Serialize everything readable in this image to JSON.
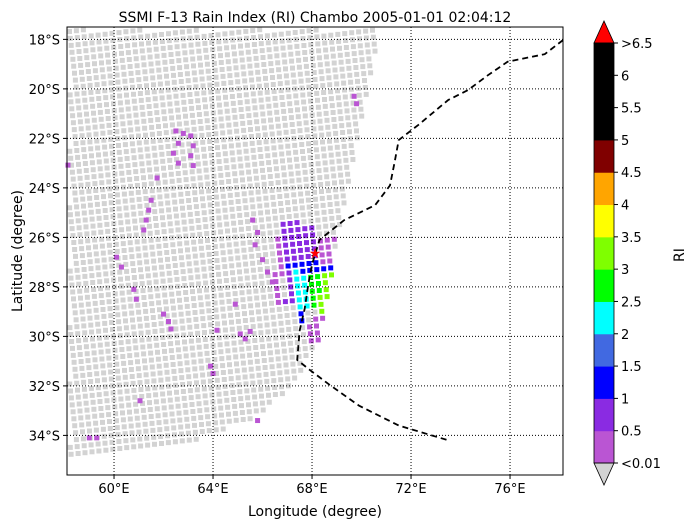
{
  "chart_data": {
    "type": "heatmap",
    "title": "SSMI F-13 Rain Index (RI) Chambo 2005-01-01 02:04:12",
    "xlabel": "Longitude (degree)",
    "ylabel": "Latitude (degree)",
    "xlim": [
      58.1,
      78.14
    ],
    "ylim": [
      -35.6,
      -17.5
    ],
    "grid": true,
    "xticks": [
      {
        "v": 60,
        "label": "60°E"
      },
      {
        "v": 64,
        "label": "64°E"
      },
      {
        "v": 68,
        "label": "68°E"
      },
      {
        "v": 72,
        "label": "72°E"
      },
      {
        "v": 76,
        "label": "76°E"
      }
    ],
    "yticks": [
      {
        "v": -18,
        "label": "18°S"
      },
      {
        "v": -20,
        "label": "20°S"
      },
      {
        "v": -22,
        "label": "22°S"
      },
      {
        "v": -24,
        "label": "24°S"
      },
      {
        "v": -26,
        "label": "26°S"
      },
      {
        "v": -28,
        "label": "28°S"
      },
      {
        "v": -30,
        "label": "30°S"
      },
      {
        "v": -32,
        "label": "32°S"
      },
      {
        "v": -34,
        "label": "34°S"
      }
    ],
    "colorbar": {
      "label": "RI",
      "under_color": "#d3d3d3",
      "over_color": "#ff0000",
      "bounds": [
        0.01,
        0.5,
        1,
        1.5,
        2,
        2.5,
        3,
        3.5,
        4,
        4.5,
        5,
        5.5,
        6,
        6.5
      ],
      "colors": [
        "#ba55d3",
        "#8a2be2",
        "#0000ff",
        "#4169e1",
        "#00ffff",
        "#00ff00",
        "#7fff00",
        "#ffff00",
        "#ffa500",
        "#800000",
        "#000000",
        "#000000",
        "#000000"
      ],
      "tick_labels": [
        "<0.01",
        "0.5",
        "1",
        "1.5",
        "2",
        "2.5",
        "3",
        "3.5",
        "4",
        "4.5",
        "5",
        "5.5",
        "6",
        ">6.5"
      ]
    },
    "swath_edge": [
      [
        70.9,
        -17.5
      ],
      [
        70.75,
        -17.62
      ],
      [
        69.13,
        -25.7
      ],
      [
        68.32,
        -30.15
      ],
      [
        67.1,
        -32.17
      ],
      [
        65.5,
        -33.38
      ],
      [
        62.67,
        -34.39
      ],
      [
        58.1,
        -35.07
      ]
    ],
    "coastline": [
      [
        78.14,
        -18.03
      ],
      [
        77.4,
        -18.6
      ],
      [
        75.9,
        -18.9
      ],
      [
        75.1,
        -19.45
      ],
      [
        74.3,
        -20.05
      ],
      [
        73.5,
        -20.45
      ],
      [
        72.3,
        -21.45
      ],
      [
        71.5,
        -22.07
      ],
      [
        71.35,
        -22.9
      ],
      [
        71.15,
        -23.9
      ],
      [
        70.55,
        -24.7
      ],
      [
        69.3,
        -25.3
      ],
      [
        68.3,
        -26.1
      ],
      [
        68.0,
        -27.1
      ],
      [
        67.85,
        -27.9
      ],
      [
        67.7,
        -28.9
      ],
      [
        67.5,
        -29.75
      ],
      [
        67.4,
        -30.95
      ],
      [
        67.9,
        -31.35
      ],
      [
        68.7,
        -31.95
      ],
      [
        69.9,
        -32.8
      ],
      [
        71.5,
        -33.6
      ],
      [
        73.5,
        -34.2
      ]
    ],
    "storm_center": {
      "lon": 68.12,
      "lat": -26.63
    },
    "rain_regions": [
      {
        "lon": [
          66.8,
          68.2
        ],
        "lat": [
          -27.0,
          -25.4
        ],
        "ri": 0.8
      },
      {
        "lon": [
          68.2,
          68.9
        ],
        "lat": [
          -27.0,
          -26.0
        ],
        "ri": 0.3
      },
      {
        "lon": [
          66.8,
          68.9
        ],
        "lat": [
          -27.4,
          -27.0
        ],
        "ri": 1.2
      },
      {
        "lon": [
          66.9,
          67.3
        ],
        "lat": [
          -28.7,
          -27.4
        ],
        "ri": 0.8
      },
      {
        "lon": [
          67.3,
          67.8
        ],
        "lat": [
          -28.9,
          -27.4
        ],
        "ri": 2.2
      },
      {
        "lon": [
          67.8,
          68.3
        ],
        "lat": [
          -29.0,
          -27.4
        ],
        "ri": 2.7
      },
      {
        "lon": [
          68.3,
          68.9
        ],
        "lat": [
          -29.2,
          -27.3
        ],
        "ri": 3.2
      },
      {
        "lon": [
          68.6,
          68.85
        ],
        "lat": [
          -28.2,
          -27.8
        ],
        "ri": 3.8
      },
      {
        "lon": [
          67.3,
          67.8
        ],
        "lat": [
          -29.4,
          -28.9
        ],
        "ri": 1.2
      },
      {
        "lon": [
          67.9,
          68.5
        ],
        "lat": [
          -30.3,
          -29.2
        ],
        "ri": 0.3
      },
      {
        "lon": [
          66.5,
          66.8
        ],
        "lat": [
          -28.7,
          -26.0
        ],
        "ri": 0.3
      }
    ],
    "rain_pixels": [
      [
        58.14,
        -23.08,
        0.3
      ],
      [
        62.5,
        -21.7,
        0.3
      ],
      [
        62.8,
        -21.8,
        0.3
      ],
      [
        63.1,
        -21.9,
        0.3
      ],
      [
        62.6,
        -22.2,
        0.3
      ],
      [
        63.2,
        -22.3,
        0.3
      ],
      [
        62.4,
        -22.6,
        0.3
      ],
      [
        63.1,
        -22.7,
        0.3
      ],
      [
        62.6,
        -23.0,
        0.3
      ],
      [
        63.2,
        -23.1,
        0.3
      ],
      [
        61.74,
        -23.6,
        0.3
      ],
      [
        61.5,
        -24.5,
        0.3
      ],
      [
        61.4,
        -24.9,
        0.3
      ],
      [
        61.3,
        -25.3,
        0.3
      ],
      [
        61.2,
        -25.7,
        0.3
      ],
      [
        60.1,
        -26.8,
        0.3
      ],
      [
        60.3,
        -27.2,
        0.3
      ],
      [
        60.8,
        -28.1,
        0.3
      ],
      [
        60.9,
        -28.5,
        0.3
      ],
      [
        62.0,
        -29.1,
        0.3
      ],
      [
        62.2,
        -29.4,
        0.3
      ],
      [
        62.3,
        -29.7,
        0.3
      ],
      [
        64.16,
        -29.75,
        0.3
      ],
      [
        65.1,
        -29.9,
        0.3
      ],
      [
        65.3,
        -30.1,
        0.3
      ],
      [
        65.5,
        -29.8,
        0.3
      ],
      [
        64.9,
        -28.7,
        0.3
      ],
      [
        63.9,
        -31.2,
        0.3
      ],
      [
        64.0,
        -31.5,
        0.3
      ],
      [
        65.8,
        -33.4,
        0.3
      ],
      [
        61.05,
        -32.6,
        0.3
      ],
      [
        59.0,
        -34.1,
        0.3
      ],
      [
        59.3,
        -34.1,
        0.3
      ],
      [
        69.7,
        -20.3,
        0.3
      ],
      [
        69.8,
        -20.6,
        0.3
      ],
      [
        65.6,
        -25.3,
        0.3
      ],
      [
        65.8,
        -25.8,
        0.3
      ],
      [
        65.7,
        -26.3,
        0.3
      ],
      [
        66.0,
        -26.9,
        0.3
      ],
      [
        66.2,
        -27.4,
        0.3
      ],
      [
        66.4,
        -27.8,
        0.3
      ]
    ]
  }
}
